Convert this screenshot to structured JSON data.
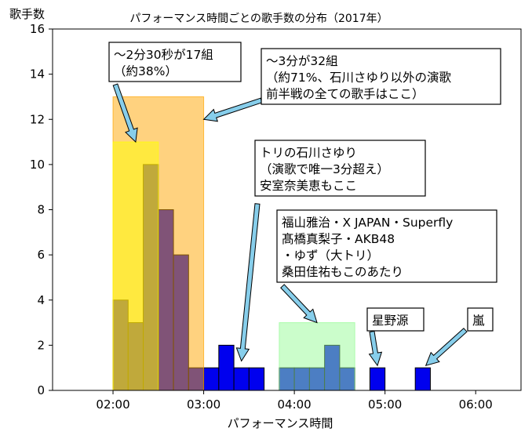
{
  "chart_data": {
    "type": "bar",
    "title": "パフォーマンス時間ごとの歌手数の分布（2017年）",
    "xlabel": "パフォーマンス時間",
    "ylabel": "歌手数",
    "xlim": [
      "01:20",
      "06:30"
    ],
    "ylim": [
      0,
      16
    ],
    "x_ticks": [
      "02:00",
      "03:00",
      "04:00",
      "05:00",
      "06:00"
    ],
    "y_ticks": [
      "0",
      "2",
      "4",
      "6",
      "8",
      "10",
      "12",
      "14",
      "16"
    ],
    "grid": false,
    "bin_width_sec": 10,
    "bars": [
      {
        "start": "02:00",
        "value": 4
      },
      {
        "start": "02:10",
        "value": 3
      },
      {
        "start": "02:20",
        "value": 10
      },
      {
        "start": "02:30",
        "value": 8
      },
      {
        "start": "02:40",
        "value": 6
      },
      {
        "start": "02:50",
        "value": 1
      },
      {
        "start": "03:00",
        "value": 1
      },
      {
        "start": "03:10",
        "value": 2
      },
      {
        "start": "03:20",
        "value": 1
      },
      {
        "start": "03:30",
        "value": 1
      },
      {
        "start": "03:50",
        "value": 1
      },
      {
        "start": "04:00",
        "value": 1
      },
      {
        "start": "04:10",
        "value": 1
      },
      {
        "start": "04:20",
        "value": 2
      },
      {
        "start": "04:30",
        "value": 1
      },
      {
        "start": "04:50",
        "value": 1
      },
      {
        "start": "05:20",
        "value": 1
      }
    ],
    "bar_color": "#0000ee",
    "highlight_regions": [
      {
        "from": "02:00",
        "to": "03:00",
        "height": 13,
        "color": "#ffa500"
      },
      {
        "from": "02:00",
        "to": "02:30",
        "height": 11,
        "color": "#ffff00"
      },
      {
        "from": "03:50",
        "to": "04:40",
        "height": 3,
        "color": "#98fb98"
      }
    ],
    "annotations": [
      {
        "lines": [
          "～2分30秒が17組",
          "（約38%）"
        ],
        "arrow_to": [
          "02:15",
          11
        ]
      },
      {
        "lines": [
          "～3分が32組",
          "（約71%、石川さゆり以外の演歌",
          "前半戦の全ての歌手はここ）"
        ],
        "arrow_to": [
          "03:00",
          12
        ]
      },
      {
        "lines": [
          "トリの石川さゆり",
          "（演歌で唯一3分超え）",
          "安室奈美恵もここ"
        ],
        "arrow_to": [
          "03:25",
          1.3
        ]
      },
      {
        "lines": [
          "福山雅治・X JAPAN・Superfly",
          "髙橋真梨子・AKB48",
          "・ゆず（大トリ）",
          "桑田佳祐もこのあたり"
        ],
        "arrow_to": [
          "04:15",
          3
        ]
      },
      {
        "lines": [
          "星野源"
        ],
        "arrow_to": [
          "04:55",
          1.1
        ]
      },
      {
        "lines": [
          "嵐"
        ],
        "arrow_to": [
          "05:27",
          1.1
        ]
      }
    ],
    "arrow_color": "#87ceeb"
  }
}
